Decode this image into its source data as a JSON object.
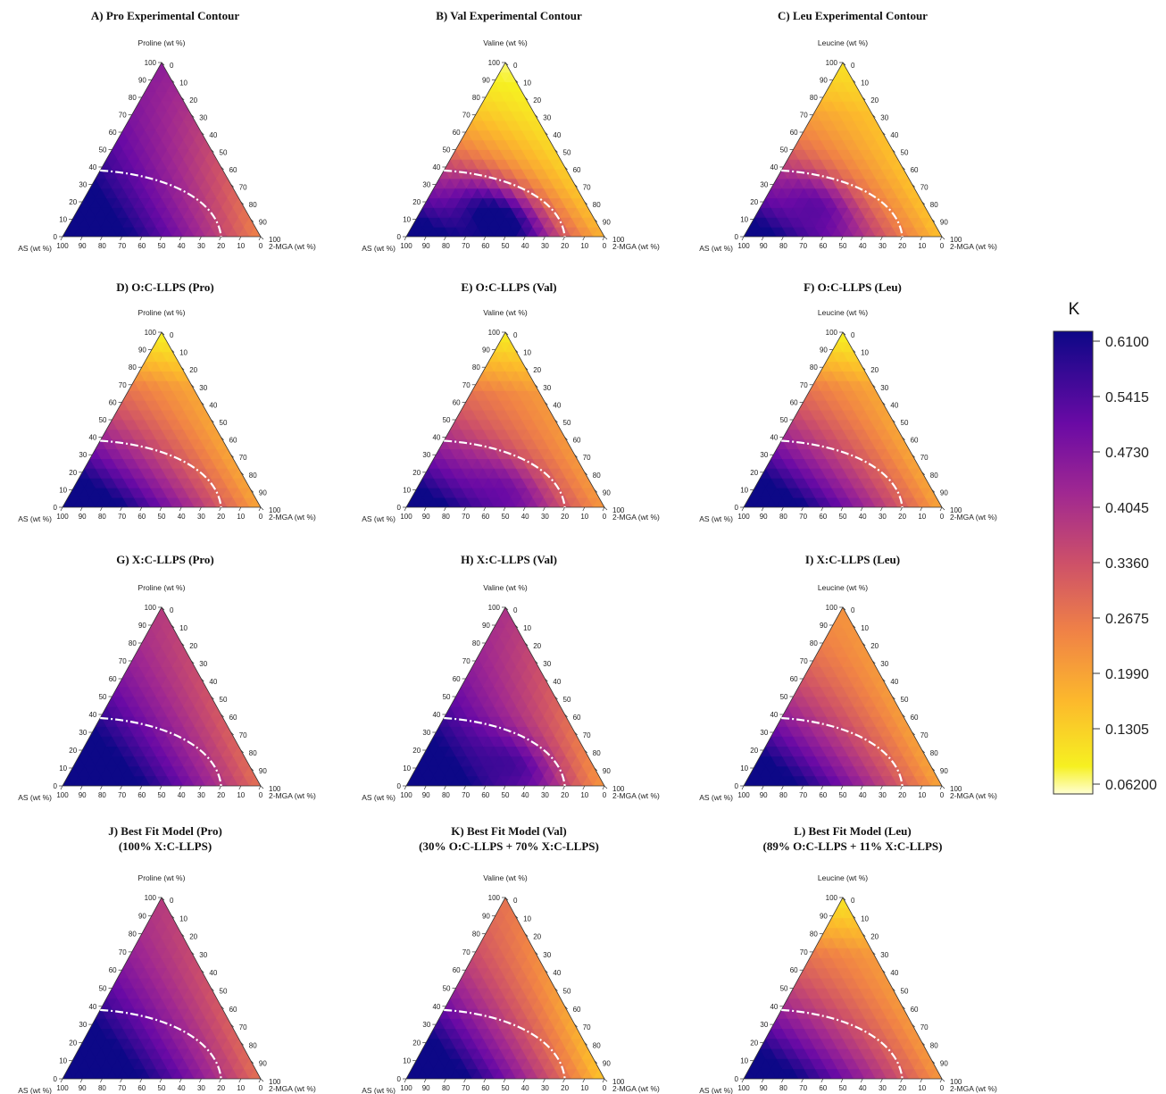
{
  "figure": {
    "colorbar": {
      "label": "K",
      "ticks": [
        "0.6100",
        "0.5415",
        "0.4730",
        "0.4045",
        "0.3360",
        "0.2675",
        "0.1990",
        "0.1305",
        "0.06200"
      ],
      "range": [
        0.062,
        0.61
      ],
      "colormap": "plasma (reversed, light yellow = low K, dark blue = high K)"
    },
    "dashed_boundary": "white dash-dot curve from AS-axis 38 wt% to 2-MGA-axis 20 wt%",
    "tick_values": [
      "0",
      "10",
      "20",
      "30",
      "40",
      "50",
      "60",
      "70",
      "80",
      "90",
      "100"
    ]
  },
  "chart_data": [
    {
      "type": "ternary-contour",
      "title_lines": [
        "A) Pro Experimental Contour"
      ],
      "top_label": "Proline (wt %)",
      "left_label": "AS (wt %)",
      "right_label": "2-MGA (wt %)",
      "variant": "proExp"
    },
    {
      "type": "ternary-contour",
      "title_lines": [
        "B) Val Experimental Contour"
      ],
      "top_label": "Valine (wt %)",
      "left_label": "AS (wt %)",
      "right_label": "2-MGA (wt %)",
      "variant": "valExp"
    },
    {
      "type": "ternary-contour",
      "title_lines": [
        "C) Leu Experimental Contour"
      ],
      "top_label": "Leucine (wt %)",
      "left_label": "AS (wt %)",
      "right_label": "2-MGA (wt %)",
      "variant": "leuExp"
    },
    {
      "type": "ternary-contour",
      "title_lines": [
        "D) O:C-LLPS (Pro)"
      ],
      "top_label": "Proline (wt %)",
      "left_label": "AS (wt %)",
      "right_label": "2-MGA (wt %)",
      "variant": "oc"
    },
    {
      "type": "ternary-contour",
      "title_lines": [
        "E) O:C-LLPS (Val)"
      ],
      "top_label": "Valine (wt %)",
      "left_label": "AS (wt %)",
      "right_label": "2-MGA (wt %)",
      "variant": "ocVal"
    },
    {
      "type": "ternary-contour",
      "title_lines": [
        "F) O:C-LLPS (Leu)"
      ],
      "top_label": "Leucine (wt %)",
      "left_label": "AS (wt %)",
      "right_label": "2-MGA (wt %)",
      "variant": "oc"
    },
    {
      "type": "ternary-contour",
      "title_lines": [
        "G) X:C-LLPS (Pro)"
      ],
      "top_label": "Proline (wt %)",
      "left_label": "AS (wt %)",
      "right_label": "2-MGA (wt %)",
      "variant": "xcPro"
    },
    {
      "type": "ternary-contour",
      "title_lines": [
        "H) X:C-LLPS (Val)"
      ],
      "top_label": "Valine (wt %)",
      "left_label": "AS (wt %)",
      "right_label": "2-MGA (wt %)",
      "variant": "xcVal"
    },
    {
      "type": "ternary-contour",
      "title_lines": [
        "I) X:C-LLPS (Leu)"
      ],
      "top_label": "Leucine (wt %)",
      "left_label": "AS (wt %)",
      "right_label": "2-MGA (wt %)",
      "variant": "xcLeu"
    },
    {
      "type": "ternary-contour",
      "title_lines": [
        "J) Best Fit Model (Pro)",
        "(100% X:C-LLPS)"
      ],
      "top_label": "Proline (wt %)",
      "left_label": "AS (wt %)",
      "right_label": "2-MGA (wt %)",
      "variant": "xcPro"
    },
    {
      "type": "ternary-contour",
      "title_lines": [
        "K) Best Fit Model (Val)",
        "(30% O:C-LLPS + 70% X:C-LLPS)"
      ],
      "top_label": "Valine (wt %)",
      "left_label": "AS (wt %)",
      "right_label": "2-MGA (wt %)",
      "variant": "mixVal"
    },
    {
      "type": "ternary-contour",
      "title_lines": [
        "L) Best Fit Model (Leu)",
        "(89% O:C-LLPS + 11% X:C-LLPS)"
      ],
      "top_label": "Leucine (wt %)",
      "left_label": "AS (wt %)",
      "right_label": "2-MGA (wt %)",
      "variant": "mixLeu"
    }
  ]
}
